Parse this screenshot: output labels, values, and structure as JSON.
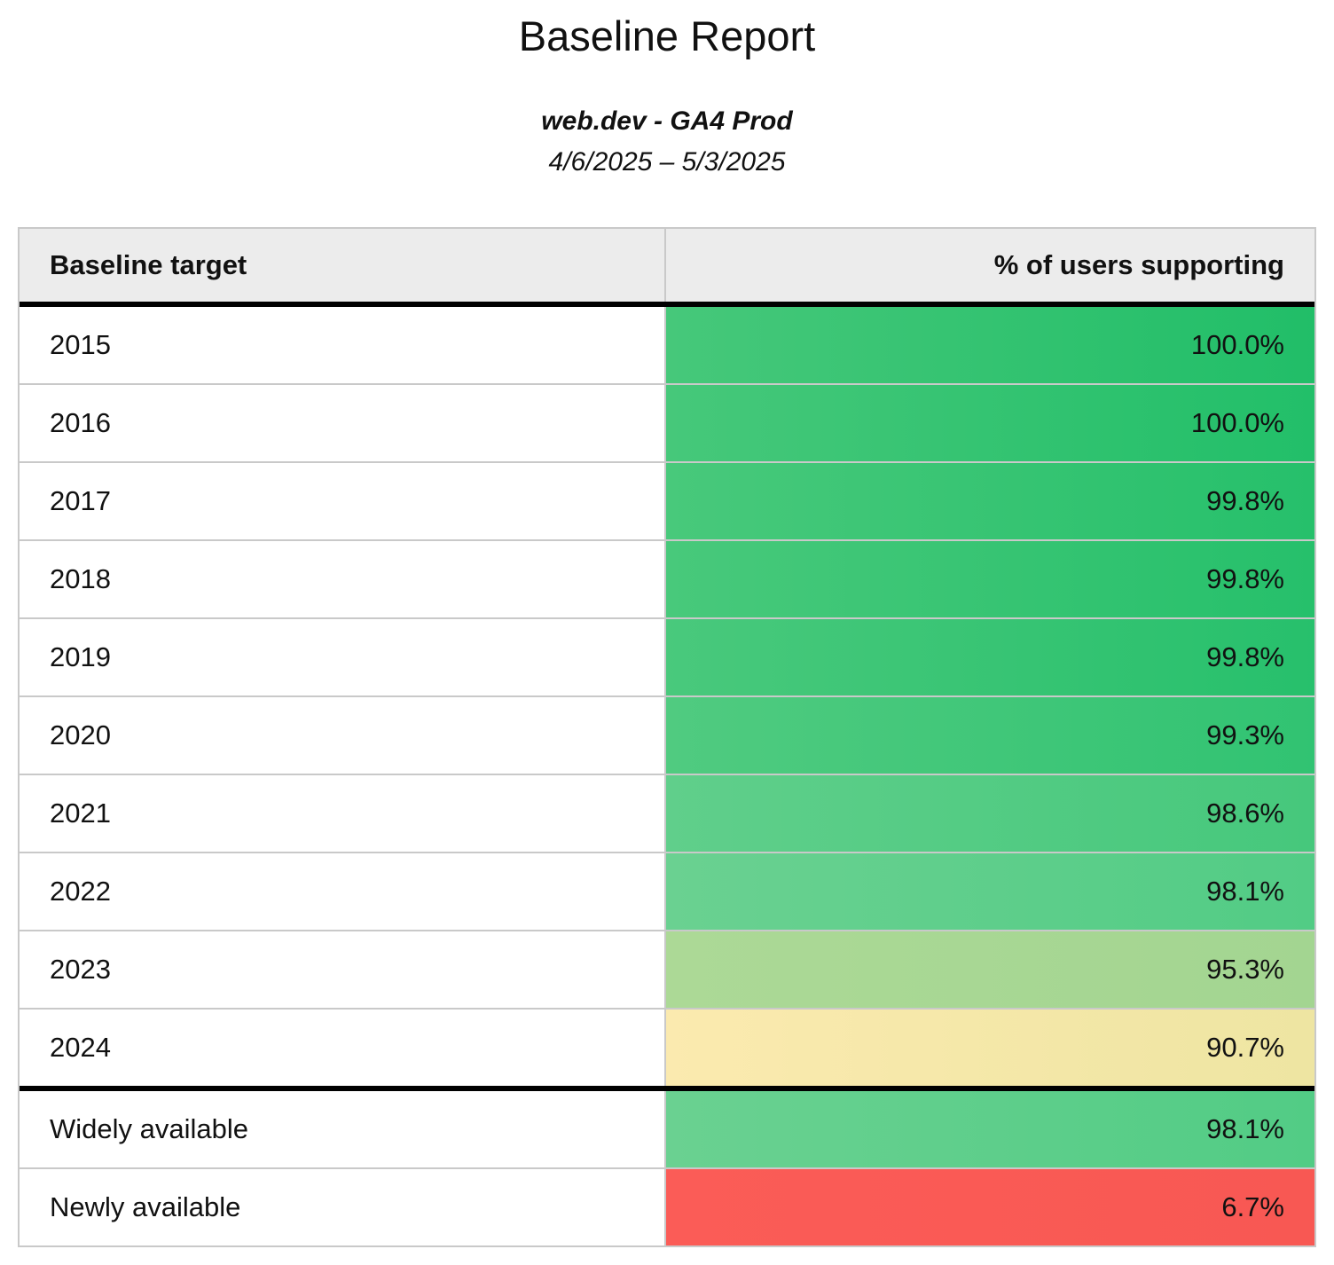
{
  "report": {
    "title": "Baseline Report",
    "subtitle": "web.dev - GA4 Prod",
    "date_range": "4/6/2025 – 5/3/2025"
  },
  "table": {
    "columns": [
      {
        "label": "Baseline target",
        "align": "left"
      },
      {
        "label": "% of users supporting",
        "align": "right"
      }
    ],
    "rows": [
      {
        "label": "2015",
        "value": "100.0%",
        "section": "years",
        "color_left": "#46C87A",
        "color_right": "#21BE68"
      },
      {
        "label": "2016",
        "value": "100.0%",
        "section": "years",
        "color_left": "#46C87A",
        "color_right": "#22BF69"
      },
      {
        "label": "2017",
        "value": "99.8%",
        "section": "years",
        "color_left": "#48C97B",
        "color_right": "#26C06B"
      },
      {
        "label": "2018",
        "value": "99.8%",
        "section": "years",
        "color_left": "#48C97B",
        "color_right": "#26C06B"
      },
      {
        "label": "2019",
        "value": "99.8%",
        "section": "years",
        "color_left": "#49C97C",
        "color_right": "#27C06C"
      },
      {
        "label": "2020",
        "value": "99.3%",
        "section": "years",
        "color_left": "#50CB80",
        "color_right": "#31C372"
      },
      {
        "label": "2021",
        "value": "98.6%",
        "section": "years",
        "color_left": "#60CF8B",
        "color_right": "#46C87C"
      },
      {
        "label": "2022",
        "value": "98.1%",
        "section": "years",
        "color_left": "#6AD191",
        "color_right": "#52CC85"
      },
      {
        "label": "2023",
        "value": "95.3%",
        "section": "years",
        "color_left": "#ACD996",
        "color_right": "#A3D591"
      },
      {
        "label": "2024",
        "value": "90.7%",
        "section": "years",
        "color_left": "#FBEAAF",
        "color_right": "#EEE5A2"
      },
      {
        "label": "Widely available",
        "value": "98.1%",
        "section": "summary",
        "color_left": "#6AD191",
        "color_right": "#52CC85"
      },
      {
        "label": "Newly available",
        "value": "6.7%",
        "section": "summary",
        "color_left": "#FB5C57",
        "color_right": "#F85853"
      }
    ]
  },
  "colors": {
    "header_bg": "#ECECEC",
    "grid_border": "#C9C9C9",
    "section_border": "#000000",
    "text": "#111111"
  },
  "chart_data": {
    "type": "table",
    "title": "Baseline Report",
    "subtitle": "web.dev - GA4 Prod",
    "date_range": "4/6/2025 – 5/3/2025",
    "columns": [
      "Baseline target",
      "% of users supporting"
    ],
    "rows": [
      {
        "baseline_target": "2015",
        "percent_users_supporting": 100.0
      },
      {
        "baseline_target": "2016",
        "percent_users_supporting": 100.0
      },
      {
        "baseline_target": "2017",
        "percent_users_supporting": 99.8
      },
      {
        "baseline_target": "2018",
        "percent_users_supporting": 99.8
      },
      {
        "baseline_target": "2019",
        "percent_users_supporting": 99.8
      },
      {
        "baseline_target": "2020",
        "percent_users_supporting": 99.3
      },
      {
        "baseline_target": "2021",
        "percent_users_supporting": 98.6
      },
      {
        "baseline_target": "2022",
        "percent_users_supporting": 98.1
      },
      {
        "baseline_target": "2023",
        "percent_users_supporting": 95.3
      },
      {
        "baseline_target": "2024",
        "percent_users_supporting": 90.7
      },
      {
        "baseline_target": "Widely available",
        "percent_users_supporting": 98.1
      },
      {
        "baseline_target": "Newly available",
        "percent_users_supporting": 6.7
      }
    ],
    "value_format": "percent, 1 decimal place",
    "layout": "two-column table, value column heatmap-colored: green (high) to yellow (~90) to red (low); thick black rules under header row and between year rows and summary rows"
  }
}
